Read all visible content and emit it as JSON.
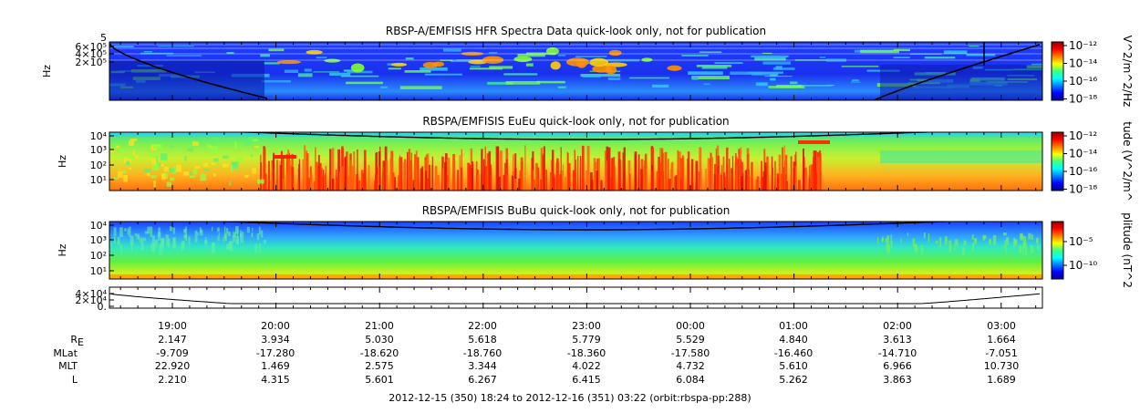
{
  "chart_data": {
    "type": "heatmap",
    "panels": [
      {
        "name": "hfr",
        "title": "RBSP-A/EMFISIS  HFR Spectra Data quick-look only, not for publication",
        "ylabel": "Hz",
        "yticks": [
          "6×10⁵",
          "4×10⁵",
          "2×10⁵"
        ],
        "ytop_label": "5",
        "colorbar_label": "V^2/m^2/Hz",
        "colorbar_ticks": [
          "10⁻¹²",
          "10⁻¹⁴",
          "10⁻¹⁶",
          "10⁻¹⁸"
        ]
      },
      {
        "name": "eueu",
        "title": "RBSPA/EMFISIS  EuEu quick-look only, not for publication",
        "ylabel": "Hz",
        "yticks": [
          "10⁴",
          "10³",
          "10²",
          "10¹"
        ],
        "colorbar_label": "tude (V^2/m^",
        "colorbar_ticks": [
          "10⁻¹²",
          "10⁻¹⁴",
          "10⁻¹⁶",
          "10⁻¹⁸"
        ]
      },
      {
        "name": "bubu",
        "title": "RBSPA/EMFISIS  BuBu quick-look only, not for publication",
        "ylabel": "Hz",
        "yticks": [
          "10⁴",
          "10³",
          "10²",
          "10¹"
        ],
        "colorbar_label": "plitude (nT^2",
        "colorbar_ticks": [
          "10⁻⁵",
          "10⁻¹⁰"
        ]
      },
      {
        "name": "small",
        "yticks": [
          "4×10⁴",
          "2×10⁴",
          "0."
        ]
      }
    ],
    "x_ticks": [
      "19:00",
      "20:00",
      "21:00",
      "22:00",
      "23:00",
      "00:00",
      "01:00",
      "02:00",
      "03:00"
    ],
    "ephemeris": [
      {
        "label": "R",
        "sub": "E",
        "values": [
          "2.147",
          "3.934",
          "5.030",
          "5.618",
          "5.779",
          "5.529",
          "4.840",
          "3.613",
          "1.664"
        ]
      },
      {
        "label": "MLat",
        "values": [
          "-9.709",
          "-17.280",
          "-18.620",
          "-18.760",
          "-18.360",
          "-17.580",
          "-16.460",
          "-14.710",
          "-7.051"
        ]
      },
      {
        "label": "MLT",
        "values": [
          "22.920",
          "1.469",
          "2.575",
          "3.344",
          "4.022",
          "4.732",
          "5.610",
          "6.966",
          "10.730"
        ]
      },
      {
        "label": "L",
        "values": [
          "2.210",
          "4.315",
          "5.601",
          "6.267",
          "6.415",
          "6.084",
          "5.262",
          "3.863",
          "1.689"
        ]
      }
    ],
    "footer": "2012-12-15 (350) 18:24 to 2012-12-16 (351) 03:22 (orbit:rbspa-pp:288)",
    "colors": {
      "low": "#1a1ae6",
      "mid": "#22dd44",
      "high": "#ff2000",
      "background": "#1e3cff"
    }
  }
}
